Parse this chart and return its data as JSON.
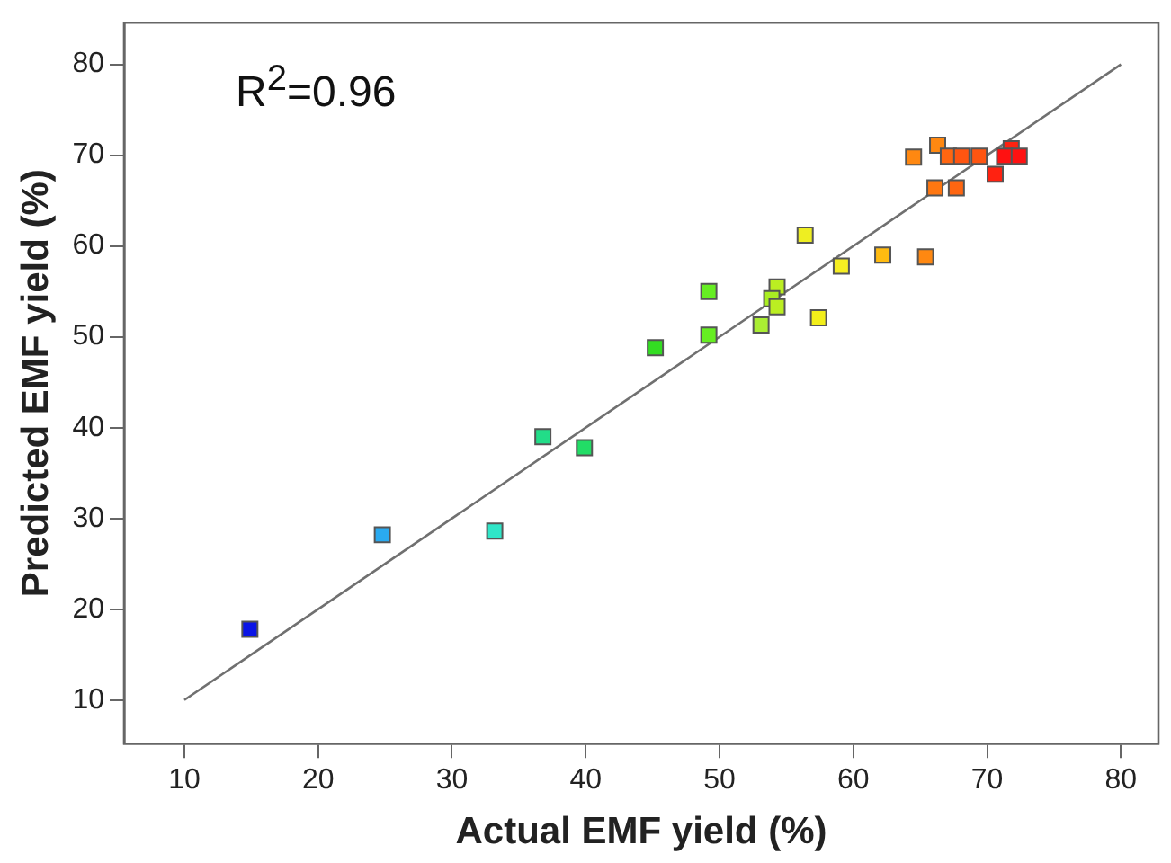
{
  "chart_data": {
    "type": "scatter",
    "xlabel": "Actual EMF yield (%)",
    "ylabel": "Predicted EMF yield (%)",
    "annotations": [
      "R$^{2}$=0.96"
    ],
    "xlim": [
      5.5,
      82.8
    ],
    "ylim": [
      5.2,
      84.6
    ],
    "xticks": [
      10,
      20,
      30,
      40,
      50,
      60,
      70,
      80
    ],
    "yticks": [
      10,
      20,
      30,
      40,
      50,
      60,
      70,
      80
    ],
    "grid": false,
    "legend": false,
    "marker": "square",
    "series": [
      {
        "x": [
          14.9,
          24.8,
          33.2,
          36.8,
          39.9,
          45.2,
          49.2,
          49.2,
          53.1,
          54.3,
          53.9,
          54.3,
          56.4,
          57.4,
          59.1,
          62.2,
          65.4,
          64.5,
          66.3,
          66.1,
          67.7,
          67.1,
          68.1,
          69.4,
          70.6,
          71.8,
          71.3,
          72.4
        ],
        "values": [
          17.8,
          28.2,
          28.6,
          39.0,
          37.8,
          48.8,
          55.0,
          50.2,
          51.3,
          55.5,
          54.2,
          53.3,
          61.2,
          52.1,
          57.8,
          59.0,
          58.8,
          69.8,
          71.1,
          66.4,
          66.4,
          69.9,
          69.9,
          69.9,
          67.9,
          70.7,
          69.9,
          69.9
        ],
        "colors": [
          "#0a14e6",
          "#2aaaf0",
          "#30e6c8",
          "#22dd88",
          "#22dd66",
          "#33dd22",
          "#66ee22",
          "#66ee22",
          "#aaee33",
          "#bbee22",
          "#aaee22",
          "#bbee22",
          "#eeee22",
          "#f2ee1a",
          "#f6ee22",
          "#ffbb11",
          "#ff8811",
          "#ff8811",
          "#ff8811",
          "#ff7711",
          "#ff6611",
          "#ff6611",
          "#ff5511",
          "#ff5511",
          "#ff2211",
          "#ff2211",
          "#ff1111",
          "#ff1111"
        ]
      },
      {
        "type": "line",
        "x": [
          10,
          80
        ],
        "values": [
          10,
          80
        ],
        "color": "#707070",
        "marker": "none"
      }
    ]
  }
}
